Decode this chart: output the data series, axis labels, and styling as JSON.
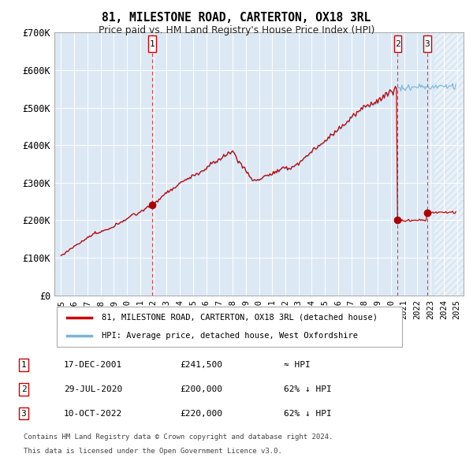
{
  "title": "81, MILESTONE ROAD, CARTERTON, OX18 3RL",
  "subtitle": "Price paid vs. HM Land Registry's House Price Index (HPI)",
  "legend_line1": "81, MILESTONE ROAD, CARTERTON, OX18 3RL (detached house)",
  "legend_line2": "HPI: Average price, detached house, West Oxfordshire",
  "transactions": [
    {
      "num": 1,
      "date": "17-DEC-2001",
      "price": 241500,
      "price_str": "£241,500",
      "rel": "≈ HPI"
    },
    {
      "num": 2,
      "date": "29-JUL-2020",
      "price": 200000,
      "price_str": "£200,000",
      "rel": "62% ↓ HPI"
    },
    {
      "num": 3,
      "date": "10-OCT-2022",
      "price": 220000,
      "price_str": "£220,000",
      "rel": "62% ↓ HPI"
    }
  ],
  "footnote1": "Contains HM Land Registry data © Crown copyright and database right 2024.",
  "footnote2": "This data is licensed under the Open Government Licence v3.0.",
  "hpi_color": "#7ab4d8",
  "price_color": "#cc0000",
  "dot_color": "#aa0000",
  "vline_color": "#cc0000",
  "bg_color": "#dce9f5",
  "grid_color": "#ffffff",
  "ylim": [
    0,
    700000
  ],
  "yticks": [
    0,
    100000,
    200000,
    300000,
    400000,
    500000,
    600000,
    700000
  ],
  "ytick_labels": [
    "£0",
    "£100K",
    "£200K",
    "£300K",
    "£400K",
    "£500K",
    "£600K",
    "£700K"
  ],
  "xmin": 1994.5,
  "xmax": 2025.5,
  "sale1_year": 2001,
  "sale1_month": 12,
  "sale1_price": 241500,
  "sale2_year": 2020,
  "sale2_month": 7,
  "sale2_price": 200000,
  "sale3_year": 2022,
  "sale3_month": 10,
  "sale3_price": 220000,
  "hatch_start": 2023.3
}
